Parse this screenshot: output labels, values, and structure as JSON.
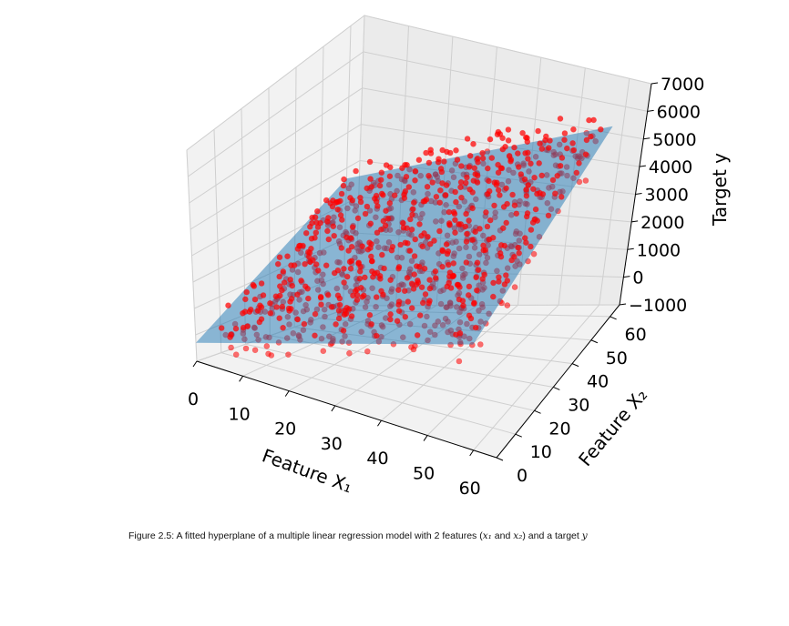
{
  "chart_data": {
    "type": "scatter",
    "projection": "3d",
    "series": [
      {
        "kind": "surface",
        "color": "#1f77b4",
        "alpha": 0.5
      },
      {
        "kind": "scatter",
        "color": "#ff0000",
        "count": 1000,
        "alpha": 0.65
      }
    ],
    "plane": {
      "intercept": -300,
      "coef_x1": 50,
      "coef_x2": 50
    },
    "xlim": [
      0,
      65
    ],
    "ylim": [
      0,
      65
    ],
    "zlim": [
      -1000,
      7000
    ],
    "x_ticks": [
      "0",
      "10",
      "20",
      "30",
      "40",
      "50",
      "60"
    ],
    "y_ticks": [
      "0",
      "10",
      "20",
      "30",
      "40",
      "50",
      "60"
    ],
    "z_ticks": [
      "7000",
      "6000",
      "5000",
      "4000",
      "3000",
      "2000",
      "1000",
      "0",
      "−1000"
    ],
    "xlabel": "Feature X₁",
    "ylabel": "Feature X₂",
    "zlabel": "Target y",
    "grid": true
  },
  "caption": {
    "prefix": "Figure 2.5: A fitted hyperplane of a multiple linear regression model with 2 features (",
    "x1": "x₁",
    "and": " and ",
    "x2": "x₂",
    "mid": ") and a target ",
    "y": "y"
  }
}
